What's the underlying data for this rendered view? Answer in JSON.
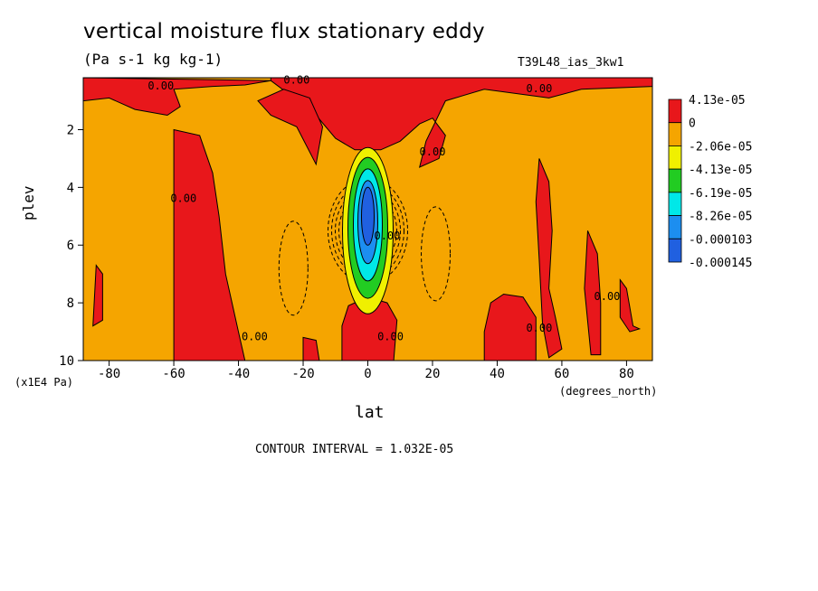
{
  "chart_data": {
    "type": "heatmap",
    "title": "vertical moisture flux stationary eddy",
    "units": "(Pa s-1 kg kg-1)",
    "run_label": "T39L48_ias_3kw1",
    "xlabel": "lat",
    "ylabel": "plev",
    "x_unit": "(degrees_north)",
    "y_unit": "(x1E4 Pa)",
    "footer": "CONTOUR INTERVAL = 1.032E-05",
    "xlim": [
      -88,
      88
    ],
    "ylim": [
      10,
      0.2
    ],
    "xticks": [
      "-80",
      "-60",
      "-40",
      "-20",
      "0",
      "20",
      "40",
      "60",
      "80"
    ],
    "xtick_values": [
      -80,
      -60,
      -40,
      -20,
      0,
      20,
      40,
      60,
      80
    ],
    "yticks": [
      "2",
      "4",
      "6",
      "8",
      "10"
    ],
    "ytick_values": [
      2,
      4,
      6,
      8,
      10
    ],
    "colorbar": {
      "labels": [
        "4.13e-05",
        "0",
        "-2.06e-05",
        "-4.13e-05",
        "-6.19e-05",
        "-8.26e-05",
        "-0.000103",
        "-0.000145"
      ],
      "colors": [
        "#e8171b",
        "#f5a500",
        "#f0f000",
        "#22cc22",
        "#00e8e8",
        "#1c8ef0",
        "#2060e0"
      ]
    },
    "background_color": "#f5a500",
    "positive_regions": [
      {
        "name": "upper-left",
        "lat": [
          -88,
          -55
        ],
        "plev": [
          0.2,
          2.0
        ]
      },
      {
        "name": "upper-center",
        "lat": [
          -25,
          25
        ],
        "plev": [
          0.2,
          2.8
        ]
      },
      {
        "name": "upper-right",
        "lat": [
          15,
          88
        ],
        "plev": [
          0.2,
          1.3
        ]
      },
      {
        "name": "sh-midlat-column",
        "lat": [
          -60,
          -44
        ],
        "plev": [
          2.0,
          10
        ]
      },
      {
        "name": "nh-midlat-column",
        "lat": [
          36,
          56
        ],
        "plev": [
          7.6,
          10
        ]
      },
      {
        "name": "equator-lower",
        "lat": [
          -9,
          9
        ],
        "plev": [
          7.8,
          10
        ]
      }
    ],
    "negative_core": {
      "lat": [
        -9,
        9
      ],
      "plev": [
        2.8,
        8.4
      ],
      "min_value": -0.000145
    },
    "contour_labels": [
      {
        "text": "0.00",
        "lat": -64,
        "plev": 0.6
      },
      {
        "text": "0.00",
        "lat": -22,
        "plev": 0.4
      },
      {
        "text": "0.00",
        "lat": 53,
        "plev": 0.7
      },
      {
        "text": "0.00",
        "lat": -57,
        "plev": 4.5
      },
      {
        "text": "0.00",
        "lat": 20,
        "plev": 2.9
      },
      {
        "text": "0.00",
        "lat": -35,
        "plev": 9.3
      },
      {
        "text": "0.00",
        "lat": 7,
        "plev": 9.3
      },
      {
        "text": "0.00",
        "lat": 53,
        "plev": 9.0
      },
      {
        "text": "0.00",
        "lat": 74,
        "plev": 7.9
      },
      {
        "text": "0.00",
        "lat": 6,
        "plev": 5.8
      }
    ]
  }
}
